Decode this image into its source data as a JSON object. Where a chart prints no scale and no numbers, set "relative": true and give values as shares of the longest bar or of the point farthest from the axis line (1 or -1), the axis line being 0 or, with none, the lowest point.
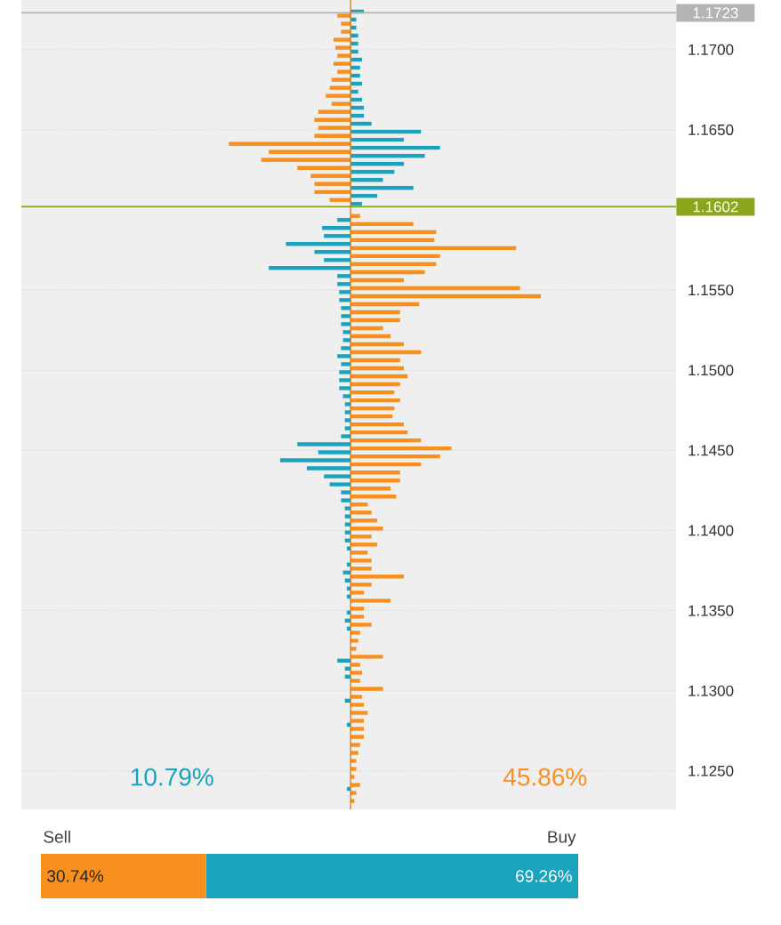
{
  "chart_data": [
    {
      "type": "bar",
      "orientation": "horizontal",
      "relative": true,
      "tick_labels": "y",
      "grid": "y",
      "x": [
        1.1725,
        1.172,
        1.1715,
        1.171,
        1.1705,
        1.17,
        1.1695,
        1.169,
        1.1685,
        1.168,
        1.1675,
        1.167,
        1.1665,
        1.166,
        1.1655,
        1.165,
        1.1645,
        1.164,
        1.1635,
        1.163,
        1.1625,
        1.162,
        1.1615,
        1.161,
        1.1605,
        1.16,
        1.1595,
        1.159,
        1.1585,
        1.158,
        1.1575,
        1.157,
        1.1565,
        1.156,
        1.1555,
        1.155,
        1.1545,
        1.154,
        1.1535,
        1.153,
        1.1525,
        1.152,
        1.1515,
        1.151,
        1.1505,
        1.15,
        1.1495,
        1.149,
        1.1485,
        1.148,
        1.1475,
        1.147,
        1.1465,
        1.146,
        1.1455,
        1.145,
        1.1445,
        1.144,
        1.1435,
        1.143,
        1.1425,
        1.142,
        1.1415,
        1.141,
        1.1405,
        1.14,
        1.1395,
        1.139,
        1.1385,
        1.138,
        1.1375,
        1.137,
        1.1365,
        1.136,
        1.1355,
        1.135,
        1.1345,
        1.134,
        1.1335,
        1.133,
        1.1325,
        1.132,
        1.1315,
        1.131,
        1.1305,
        1.13,
        1.1295,
        1.129,
        1.1285,
        1.128,
        1.1275,
        1.127,
        1.1265,
        1.126,
        1.1255,
        1.125,
        1.1245,
        1.124,
        1.1235,
        1.123
      ],
      "series": [
        {
          "color": "#1aa3bc",
          "values": [
            0.07,
            0.03,
            0.03,
            0.04,
            0.04,
            0.04,
            0.06,
            0.05,
            0.05,
            0.06,
            0.04,
            0.06,
            0.07,
            0.07,
            0.11,
            0.37,
            0.28,
            0.47,
            0.39,
            0.28,
            0.23,
            0.17,
            0.33,
            0.14,
            0.06,
            0,
            -0.07,
            -0.15,
            -0.14,
            -0.34,
            -0.19,
            -0.14,
            -0.43,
            -0.07,
            -0.07,
            -0.06,
            -0.06,
            -0.05,
            -0.05,
            -0.05,
            -0.04,
            -0.04,
            -0.05,
            -0.07,
            -0.05,
            -0.06,
            -0.06,
            -0.06,
            -0.04,
            -0.03,
            -0.03,
            -0.03,
            -0.03,
            -0.05,
            -0.28,
            -0.17,
            -0.37,
            -0.23,
            -0.14,
            -0.11,
            -0.05,
            -0.05,
            -0.03,
            -0.03,
            -0.03,
            -0.03,
            -0.03,
            -0.02,
            0,
            -0.02,
            -0.04,
            -0.03,
            -0.02,
            -0.02,
            0,
            -0.02,
            -0.03,
            -0.02,
            0,
            0,
            0,
            -0.07,
            -0.03,
            -0.03,
            0,
            0,
            -0.03,
            0,
            0,
            -0.02,
            0,
            0,
            0,
            0,
            0,
            0,
            0,
            -0.02,
            0,
            0
          ]
        },
        {
          "color": "#f7901e",
          "values": [
            0,
            -0.07,
            -0.05,
            -0.05,
            -0.09,
            -0.08,
            -0.07,
            -0.09,
            -0.07,
            -0.1,
            -0.11,
            -0.13,
            -0.1,
            -0.17,
            -0.19,
            -0.17,
            -0.19,
            -0.64,
            -0.43,
            -0.47,
            -0.28,
            -0.21,
            -0.19,
            -0.19,
            -0.11,
            0,
            0.05,
            0.33,
            0.45,
            0.44,
            0.87,
            0.47,
            0.45,
            0.39,
            0.28,
            0.89,
            1,
            0.36,
            0.26,
            0.26,
            0.17,
            0.21,
            0.28,
            0.37,
            0.26,
            0.28,
            0.3,
            0.26,
            0.23,
            0.26,
            0.23,
            0.22,
            0.28,
            0.3,
            0.37,
            0.53,
            0.47,
            0.37,
            0.26,
            0.26,
            0.21,
            0.24,
            0.09,
            0.11,
            0.14,
            0.17,
            0.11,
            0.14,
            0.09,
            0.11,
            0.11,
            0.28,
            0.11,
            0.07,
            0.21,
            0.07,
            0.07,
            0.11,
            0.05,
            0.04,
            0.03,
            0.17,
            0.05,
            0.06,
            0.05,
            0.17,
            0.06,
            0.07,
            0.09,
            0.07,
            0.07,
            0.07,
            0.05,
            0.04,
            0.03,
            0.03,
            0.02,
            0.05,
            0.03,
            0.02
          ]
        }
      ],
      "ylim": [
        1.1226,
        1.1731
      ],
      "yticks": [
        {
          "value": 1.125,
          "label": "1.1250"
        },
        {
          "value": 1.13,
          "label": "1.1300"
        },
        {
          "value": 1.135,
          "label": "1.1350"
        },
        {
          "value": 1.14,
          "label": "1.1400"
        },
        {
          "value": 1.145,
          "label": "1.1450"
        },
        {
          "value": 1.15,
          "label": "1.1500"
        },
        {
          "value": 1.155,
          "label": "1.1550"
        },
        {
          "value": 1.165,
          "label": "1.1650"
        },
        {
          "value": 1.17,
          "label": "1.1700"
        }
      ],
      "ref_lines": [
        {
          "axis": "y",
          "value": 1.1723,
          "label": "1.1723",
          "color": "#b4b4b4"
        },
        {
          "axis": "y",
          "value": 1.1602,
          "label": "1.1602",
          "color": "#8aa61c"
        },
        {
          "axis": "x",
          "value": 0,
          "color": "#c67318"
        }
      ],
      "annotations": [
        "10.79%",
        "45.86%"
      ]
    },
    {
      "type": "bar",
      "orientation": "horizontal",
      "stacked": true,
      "categories": [
        null
      ],
      "series": [
        {
          "name": "Sell",
          "color": "#f7901e",
          "values": [
            30.74
          ],
          "value_labels": [
            "30.74%"
          ]
        },
        {
          "name": "Buy",
          "color": "#1aa3bc",
          "values": [
            69.26
          ],
          "value_labels": [
            "69.26%"
          ]
        }
      ]
    }
  ]
}
